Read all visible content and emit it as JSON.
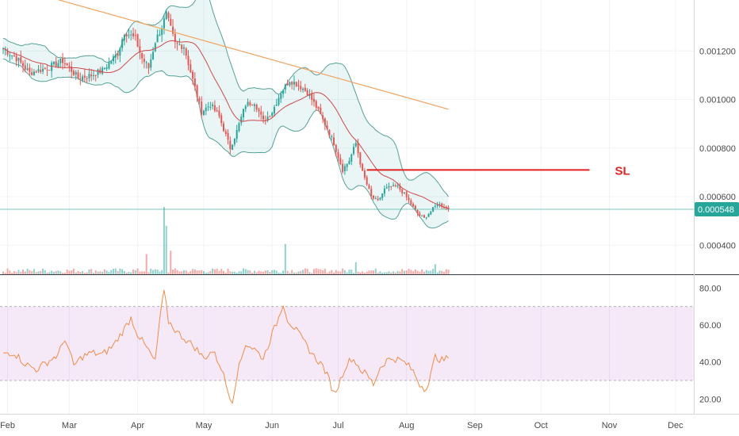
{
  "colors": {
    "up": "#26a69a",
    "down": "#ef5350",
    "bands_fill": "#26a69a",
    "bands_line": "#2e8b7e",
    "basis": "#d2474a",
    "long_ma": "#f2a35e",
    "sl_line": "#e2201f",
    "rsi_line": "#f28c48",
    "rsi_band": "#9c27b0",
    "last_price": "#26a69a"
  },
  "price_axis": {
    "ticks": [
      {
        "value": 0.0012,
        "label": "0.001200"
      },
      {
        "value": 0.001,
        "label": "0.001000"
      },
      {
        "value": 0.0008,
        "label": "0.000800"
      },
      {
        "value": 0.0006,
        "label": "0.000600"
      },
      {
        "value": 0.0004,
        "label": "0.000400"
      }
    ],
    "range": [
      0.00028,
      0.00141
    ]
  },
  "last_price": {
    "value": 0.000548,
    "label": "0.000548"
  },
  "sl": {
    "label": "SL",
    "value": 0.00071,
    "from_day": 165,
    "to_day": 266
  },
  "rsi_axis": {
    "ticks": [
      {
        "value": 80,
        "label": "80.00"
      },
      {
        "value": 60,
        "label": "60.00"
      },
      {
        "value": 40,
        "label": "40.00"
      },
      {
        "value": 20,
        "label": "20.00"
      }
    ],
    "range": [
      12,
      87
    ],
    "band": [
      30,
      70
    ]
  },
  "time_axis": {
    "labels": [
      {
        "day": 2,
        "label": "Feb"
      },
      {
        "day": 30,
        "label": "Mar"
      },
      {
        "day": 61,
        "label": "Apr"
      },
      {
        "day": 91,
        "label": "May"
      },
      {
        "day": 122,
        "label": "Jun"
      },
      {
        "day": 152,
        "label": "Jul"
      },
      {
        "day": 183,
        "label": "Aug"
      },
      {
        "day": 214,
        "label": "Sep"
      },
      {
        "day": 244,
        "label": "Oct"
      },
      {
        "day": 275,
        "label": "Nov"
      },
      {
        "day": 305,
        "label": "Dec"
      }
    ],
    "last_day": 202
  },
  "chart_data": {
    "type": "candlestick",
    "title": "",
    "price_key_points": [
      [
        0,
        0.00121
      ],
      [
        6,
        0.00117
      ],
      [
        12,
        0.00111
      ],
      [
        20,
        0.00113
      ],
      [
        27,
        0.00116
      ],
      [
        34,
        0.00109
      ],
      [
        40,
        0.0011
      ],
      [
        45,
        0.00112
      ],
      [
        52,
        0.00119
      ],
      [
        55,
        0.00128
      ],
      [
        60,
        0.00125
      ],
      [
        63,
        0.00117
      ],
      [
        66,
        0.00113
      ],
      [
        69,
        0.00124
      ],
      [
        72,
        0.0013
      ],
      [
        74,
        0.00135
      ],
      [
        78,
        0.00123
      ],
      [
        82,
        0.00122
      ],
      [
        86,
        0.00108
      ],
      [
        90,
        0.00095
      ],
      [
        94,
        0.00098
      ],
      [
        98,
        0.00093
      ],
      [
        103,
        0.0008
      ],
      [
        106,
        0.00087
      ],
      [
        110,
        0.00098
      ],
      [
        114,
        0.00099
      ],
      [
        118,
        0.00091
      ],
      [
        122,
        0.00095
      ],
      [
        126,
        0.00103
      ],
      [
        130,
        0.00108
      ],
      [
        134,
        0.00106
      ],
      [
        138,
        0.00103
      ],
      [
        142,
        0.00097
      ],
      [
        146,
        0.0009
      ],
      [
        150,
        0.00082
      ],
      [
        154,
        0.00071
      ],
      [
        157,
        0.00075
      ],
      [
        160,
        0.00082
      ],
      [
        163,
        0.0007
      ],
      [
        167,
        0.0006
      ],
      [
        170,
        0.00058
      ],
      [
        173,
        0.00063
      ],
      [
        176,
        0.00064
      ],
      [
        179,
        0.00064
      ],
      [
        182,
        0.00061
      ],
      [
        185,
        0.00057
      ],
      [
        188,
        0.00053
      ],
      [
        191,
        0.00051
      ],
      [
        194,
        0.00054
      ],
      [
        197,
        0.00057
      ],
      [
        200,
        0.00056
      ],
      [
        202,
        0.000548
      ]
    ],
    "rsi_key_points": [
      [
        0,
        45
      ],
      [
        5,
        45
      ],
      [
        10,
        39
      ],
      [
        15,
        36
      ],
      [
        20,
        40
      ],
      [
        25,
        44
      ],
      [
        28,
        53
      ],
      [
        32,
        38
      ],
      [
        36,
        43
      ],
      [
        40,
        45
      ],
      [
        45,
        44
      ],
      [
        50,
        49
      ],
      [
        55,
        58
      ],
      [
        58,
        64
      ],
      [
        61,
        55
      ],
      [
        66,
        46
      ],
      [
        69,
        40
      ],
      [
        71,
        63
      ],
      [
        73,
        78
      ],
      [
        75,
        62
      ],
      [
        79,
        56
      ],
      [
        83,
        52
      ],
      [
        87,
        48
      ],
      [
        91,
        42
      ],
      [
        95,
        46
      ],
      [
        99,
        37
      ],
      [
        102,
        24
      ],
      [
        104,
        19
      ],
      [
        106,
        33
      ],
      [
        110,
        50
      ],
      [
        114,
        47
      ],
      [
        118,
        42
      ],
      [
        122,
        55
      ],
      [
        125,
        64
      ],
      [
        127,
        72
      ],
      [
        129,
        63
      ],
      [
        133,
        57
      ],
      [
        137,
        50
      ],
      [
        141,
        43
      ],
      [
        145,
        38
      ],
      [
        148,
        30
      ],
      [
        150,
        23
      ],
      [
        152,
        27
      ],
      [
        155,
        37
      ],
      [
        158,
        42
      ],
      [
        160,
        40
      ],
      [
        162,
        36
      ],
      [
        165,
        33
      ],
      [
        168,
        28
      ],
      [
        171,
        37
      ],
      [
        174,
        41
      ],
      [
        177,
        42
      ],
      [
        180,
        41
      ],
      [
        183,
        39
      ],
      [
        186,
        35
      ],
      [
        189,
        28
      ],
      [
        191,
        26
      ],
      [
        193,
        28
      ],
      [
        196,
        43
      ],
      [
        199,
        41
      ],
      [
        202,
        42
      ]
    ],
    "volume_spikes": [
      [
        73,
        1.0
      ],
      [
        74,
        0.72
      ],
      [
        76,
        0.35
      ],
      [
        128,
        0.45
      ],
      [
        65,
        0.3
      ],
      [
        160,
        0.18
      ],
      [
        196,
        0.15
      ]
    ],
    "indicators": [
      "Bollinger Bands",
      "Moving Average",
      "Long Moving Average",
      "Volume",
      "RSI"
    ]
  }
}
